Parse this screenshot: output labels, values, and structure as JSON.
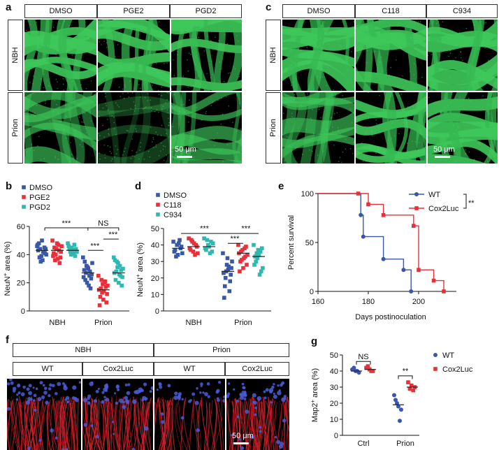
{
  "panels": {
    "a": "a",
    "b": "b",
    "c": "c",
    "d": "d",
    "e": "e",
    "f": "f",
    "g": "g"
  },
  "panel_a": {
    "columns": [
      "DMSO",
      "PGE2",
      "PGD2"
    ],
    "rows": [
      "NBH",
      "Prion"
    ],
    "scale_bar": "50 μm"
  },
  "panel_c": {
    "columns": [
      "DMSO",
      "C118",
      "C934"
    ],
    "rows": [
      "NBH",
      "Prion"
    ],
    "scale_bar": "50 μm"
  },
  "panel_f": {
    "groups": [
      "NBH",
      "Prion"
    ],
    "columns": [
      "WT",
      "Cox2Luc",
      "WT",
      "Cox2Luc"
    ],
    "scale_bar": "50 μm"
  },
  "colors": {
    "blue": "#3a57a6",
    "red": "#e8303a",
    "teal": "#30b8b0",
    "green": "#3ec85a",
    "blue_g": "#3a57b0"
  },
  "chart_data": [
    {
      "id": "b",
      "type": "scatter",
      "ylabel": "NeuN+ area (%)",
      "ylim": [
        0,
        60
      ],
      "yticks": [
        0,
        20,
        40,
        60
      ],
      "categories": [
        "NBH",
        "Prion"
      ],
      "legend": [
        "DMSO",
        "PGE2",
        "PGD2"
      ],
      "sig": [
        "***",
        "NS",
        "***",
        "***"
      ],
      "series": [
        {
          "name": "DMSO",
          "values": [
            [
              46,
              44,
              42,
              40,
              38,
              36,
              44,
              48,
              50,
              41,
              43,
              39,
              45,
              47,
              35,
              42
            ],
            [
              38,
              35,
              32,
              30,
              28,
              26,
              24,
              22,
              20,
              18,
              16,
              34,
              29,
              27,
              31,
              25,
              23
            ]
          ]
        },
        {
          "name": "PGE2",
          "values": [
            [
              50,
              48,
              46,
              44,
              42,
              40,
              38,
              36,
              34,
              45,
              43,
              41,
              47,
              39,
              37
            ],
            [
              25,
              22,
              20,
              18,
              16,
              14,
              12,
              10,
              8,
              6,
              4,
              19,
              17,
              15,
              13,
              21
            ]
          ]
        },
        {
          "name": "PGD2",
          "values": [
            [
              48,
              46,
              44,
              42,
              40,
              45,
              43,
              41,
              47,
              39,
              44,
              42
            ],
            [
              38,
              35,
              32,
              30,
              28,
              26,
              24,
              22,
              20,
              18,
              36,
              34,
              29,
              27,
              31,
              25
            ]
          ]
        }
      ],
      "means": [
        [
          43,
          43,
          43
        ],
        [
          27,
          15,
          27
        ]
      ]
    },
    {
      "id": "d",
      "type": "scatter",
      "ylabel": "NeuN+ area (%)",
      "ylim": [
        0,
        50
      ],
      "yticks": [
        0,
        10,
        20,
        30,
        40,
        50
      ],
      "categories": [
        "NBH",
        "Prion"
      ],
      "legend": [
        "DMSO",
        "C118",
        "C934"
      ],
      "sig": [
        "***",
        "***",
        "***"
      ],
      "series": [
        {
          "name": "DMSO",
          "values": [
            [
              42,
              40,
              38,
              36,
              34,
              39,
              37,
              41,
              35,
              33,
              43
            ],
            [
              35,
              32,
              30,
              28,
              26,
              24,
              22,
              20,
              18,
              15,
              12,
              8,
              27,
              23,
              25
            ]
          ]
        },
        {
          "name": "C118",
          "values": [
            [
              44,
              42,
              40,
              38,
              36,
              39,
              37,
              41,
              35,
              43,
              34
            ],
            [
              40,
              38,
              36,
              34,
              32,
              30,
              28,
              26,
              24,
              39,
              37,
              35,
              33,
              31
            ]
          ]
        },
        {
          "name": "C934",
          "values": [
            [
              44,
              42,
              40,
              38,
              36,
              39,
              37,
              41,
              35,
              43
            ],
            [
              40,
              38,
              36,
              34,
              32,
              30,
              28,
              26,
              24,
              22,
              37,
              35,
              33
            ]
          ]
        }
      ],
      "means": [
        [
          38,
          39,
          39
        ],
        [
          24,
          35,
          33
        ]
      ]
    },
    {
      "id": "e",
      "type": "line",
      "xlabel": "Days postinoculation",
      "ylabel": "Percent survival",
      "xlim": [
        160,
        215
      ],
      "xticks": [
        160,
        180,
        200
      ],
      "ylim": [
        0,
        100
      ],
      "yticks": [
        0,
        50,
        100
      ],
      "sig": "**",
      "series": [
        {
          "name": "WT",
          "x": [
            160,
            177,
            177,
            178,
            178,
            186,
            186,
            194,
            194,
            197,
            197
          ],
          "y": [
            100,
            100,
            78,
            78,
            56,
            56,
            33,
            33,
            22,
            22,
            0
          ]
        },
        {
          "name": "Cox2Luc",
          "x": [
            160,
            176,
            176,
            180,
            180,
            186,
            186,
            198,
            198,
            200,
            200,
            206,
            206,
            210,
            210
          ],
          "y": [
            100,
            100,
            100,
            100,
            89,
            89,
            78,
            78,
            67,
            67,
            22,
            22,
            11,
            11,
            0
          ]
        }
      ]
    },
    {
      "id": "g",
      "type": "scatter",
      "ylabel": "Map2+ area (%)",
      "ylim": [
        0,
        50
      ],
      "yticks": [
        0,
        10,
        20,
        30,
        40,
        50
      ],
      "categories": [
        "Ctrl",
        "Prion"
      ],
      "legend": [
        "WT",
        "Cox2Luc"
      ],
      "sig": [
        "NS",
        "**"
      ],
      "series": [
        {
          "name": "WT",
          "values": [
            [
              41,
              40,
              39,
              42,
              40
            ],
            [
              25,
              22,
              20,
              18,
              9,
              16
            ]
          ]
        },
        {
          "name": "Cox2Luc",
          "values": [
            [
              42,
              41,
              40,
              43,
              40
            ],
            [
              33,
              31,
              30,
              29,
              28
            ]
          ]
        }
      ],
      "means": [
        [
          40,
          41
        ],
        [
          19,
          30
        ]
      ]
    }
  ]
}
